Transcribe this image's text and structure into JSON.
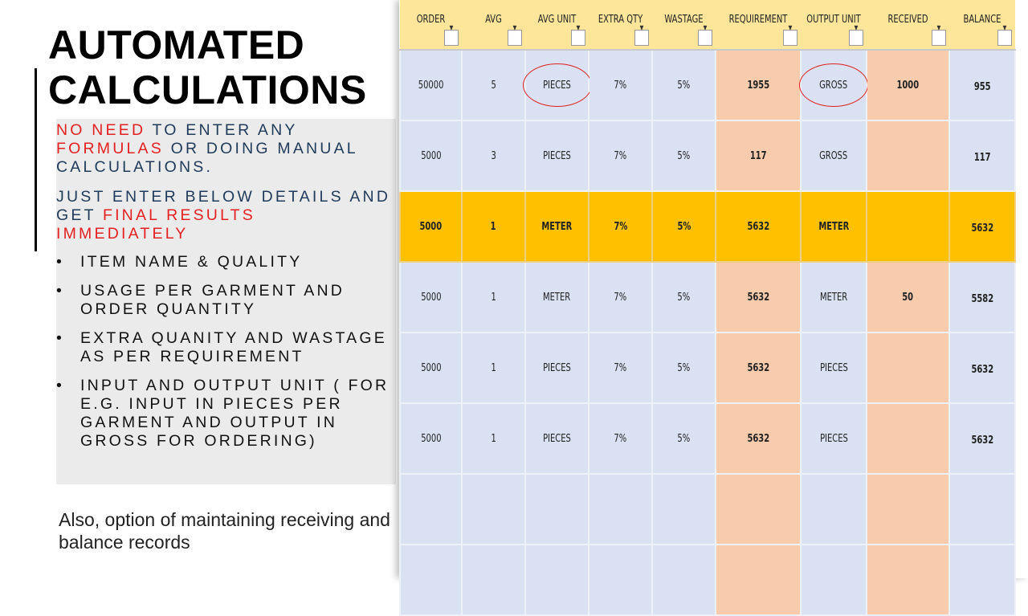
{
  "title": [
    "AUTOMATED",
    "CALCULATIONS"
  ],
  "intro1": {
    "red1": "NO NEED",
    "t1": " TO ENTER ANY ",
    "red2": "FORMULAS",
    "t2": " OR DOING MANUAL CALCULATIONS."
  },
  "intro2": {
    "t1": "JUST ENTER BELOW DETAILS AND GET ",
    "red1": "FINAL RESULTS IMMEDIATELY"
  },
  "bullets": [
    "ITEM NAME & QUALITY",
    "USAGE PER GARMENT AND ORDER QUANTITY",
    "EXTRA QUANITY AND WASTAGE AS PER REQUIREMENT",
    "INPUT AND OUTPUT UNIT ( FOR E.G. INPUT IN PIECES PER GARMENT AND OUTPUT IN GROSS FOR ORDERING)"
  ],
  "note": "Also, option of maintaining receiving and balance records",
  "table": {
    "headers": [
      "ORDER",
      "AVG",
      "AVG UNIT",
      "EXTRA QTY",
      "WASTAGE",
      "REQUIREMENT",
      "OUTPUT UNIT",
      "RECEIVED",
      "BALANCE"
    ],
    "dropdown_icon": "chevron-down-icon",
    "rows": [
      [
        "50000",
        "5",
        "PIECES",
        "7%",
        "5%",
        "1955",
        "GROSS",
        "1000",
        "955"
      ],
      [
        "5000",
        "3",
        "PIECES",
        "7%",
        "5%",
        "117",
        "GROSS",
        "",
        "117"
      ],
      [
        "5000",
        "1",
        "METER",
        "7%",
        "5%",
        "5632",
        "METER",
        "",
        "5632"
      ],
      [
        "5000",
        "1",
        "METER",
        "7%",
        "5%",
        "5632",
        "METER",
        "50",
        "5582"
      ],
      [
        "5000",
        "1",
        "PIECES",
        "7%",
        "5%",
        "5632",
        "PIECES",
        "",
        "5632"
      ],
      [
        "5000",
        "1",
        "PIECES",
        "7%",
        "5%",
        "5632",
        "PIECES",
        "",
        "5632"
      ],
      [
        "",
        "",
        "",
        "",
        "",
        "",
        "",
        "",
        ""
      ],
      [
        "",
        "",
        "",
        "",
        "",
        "",
        "",
        "",
        ""
      ]
    ],
    "highlighted_row": 2,
    "circled": [
      [
        0,
        2
      ],
      [
        0,
        6
      ]
    ],
    "colors": {
      "header": "#fde59a",
      "cell": "#d9e1f2",
      "calc": "#f8cbad",
      "highlight": "#ffc000",
      "circle": "#e02020"
    }
  }
}
